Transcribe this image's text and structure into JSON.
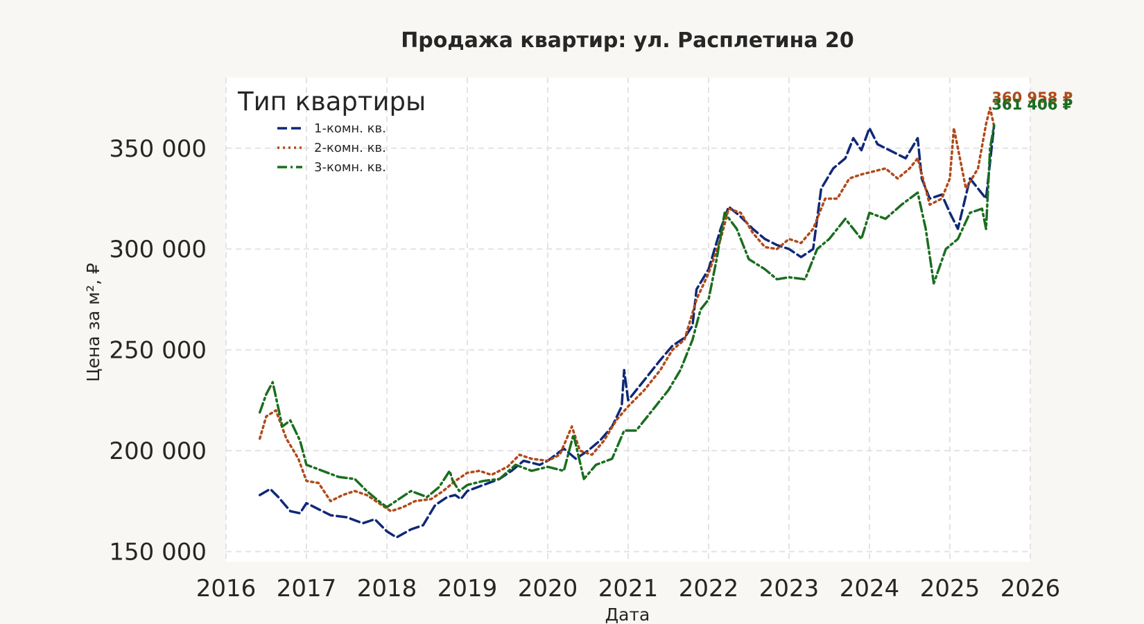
{
  "chart_data": {
    "type": "line",
    "title": "Продажа квартир: ул. Расплетина 20",
    "xlabel": "Дата",
    "ylabel": "Цена за м², ₽",
    "xlim": [
      2016.0,
      2026.0
    ],
    "ylim": [
      145000,
      385000
    ],
    "x_ticks": [
      "2016",
      "2017",
      "2018",
      "2019",
      "2020",
      "2021",
      "2022",
      "2023",
      "2024",
      "2025",
      "2026"
    ],
    "y_ticks": [
      {
        "value": 150000,
        "label": "150 000"
      },
      {
        "value": 200000,
        "label": "200 000"
      },
      {
        "value": 250000,
        "label": "250 000"
      },
      {
        "value": 300000,
        "label": "300 000"
      },
      {
        "value": 350000,
        "label": "350 000"
      }
    ],
    "grid": true,
    "legend": {
      "title": "Тип квартиры",
      "position": "top-left"
    },
    "series": [
      {
        "name": "1-комн. кв.",
        "color": "#0f2877",
        "dash": "dashed",
        "end_label": "361 406 ₽",
        "points": [
          [
            2016.42,
            178000
          ],
          [
            2016.55,
            181000
          ],
          [
            2016.65,
            177000
          ],
          [
            2016.8,
            170000
          ],
          [
            2016.92,
            169000
          ],
          [
            2017.0,
            174000
          ],
          [
            2017.15,
            171000
          ],
          [
            2017.3,
            168000
          ],
          [
            2017.5,
            167000
          ],
          [
            2017.7,
            164000
          ],
          [
            2017.85,
            166000
          ],
          [
            2018.0,
            160000
          ],
          [
            2018.12,
            157000
          ],
          [
            2018.3,
            161000
          ],
          [
            2018.45,
            163000
          ],
          [
            2018.6,
            173000
          ],
          [
            2018.75,
            177000
          ],
          [
            2018.85,
            178000
          ],
          [
            2018.92,
            176000
          ],
          [
            2019.0,
            180000
          ],
          [
            2019.2,
            183000
          ],
          [
            2019.4,
            186000
          ],
          [
            2019.55,
            190000
          ],
          [
            2019.7,
            195000
          ],
          [
            2019.9,
            193000
          ],
          [
            2020.0,
            195000
          ],
          [
            2020.2,
            201000
          ],
          [
            2020.35,
            196000
          ],
          [
            2020.5,
            200000
          ],
          [
            2020.65,
            205000
          ],
          [
            2020.8,
            212000
          ],
          [
            2020.92,
            222000
          ],
          [
            2020.95,
            240000
          ],
          [
            2021.0,
            225000
          ],
          [
            2021.2,
            235000
          ],
          [
            2021.4,
            245000
          ],
          [
            2021.55,
            252000
          ],
          [
            2021.7,
            256000
          ],
          [
            2021.8,
            262000
          ],
          [
            2021.85,
            280000
          ],
          [
            2022.0,
            290000
          ],
          [
            2022.15,
            310000
          ],
          [
            2022.25,
            321000
          ],
          [
            2022.4,
            316000
          ],
          [
            2022.55,
            310000
          ],
          [
            2022.7,
            305000
          ],
          [
            2022.85,
            302000
          ],
          [
            2023.0,
            300000
          ],
          [
            2023.15,
            296000
          ],
          [
            2023.3,
            300000
          ],
          [
            2023.4,
            330000
          ],
          [
            2023.55,
            340000
          ],
          [
            2023.7,
            345000
          ],
          [
            2023.8,
            355000
          ],
          [
            2023.9,
            349000
          ],
          [
            2024.0,
            360000
          ],
          [
            2024.1,
            352000
          ],
          [
            2024.3,
            348000
          ],
          [
            2024.45,
            345000
          ],
          [
            2024.6,
            355000
          ],
          [
            2024.65,
            335000
          ],
          [
            2024.75,
            325000
          ],
          [
            2024.9,
            327000
          ],
          [
            2025.0,
            318000
          ],
          [
            2025.1,
            310000
          ],
          [
            2025.25,
            335000
          ],
          [
            2025.35,
            330000
          ],
          [
            2025.45,
            325000
          ],
          [
            2025.55,
            361406
          ]
        ]
      },
      {
        "name": "2-комн. кв.",
        "color": "#b04a1a",
        "dash": "dotted",
        "end_label": "360 958 ₽",
        "points": [
          [
            2016.42,
            206000
          ],
          [
            2016.5,
            217000
          ],
          [
            2016.62,
            220000
          ],
          [
            2016.75,
            206000
          ],
          [
            2016.9,
            196000
          ],
          [
            2017.0,
            185000
          ],
          [
            2017.15,
            184000
          ],
          [
            2017.3,
            175000
          ],
          [
            2017.45,
            178000
          ],
          [
            2017.6,
            180000
          ],
          [
            2017.75,
            178000
          ],
          [
            2017.9,
            174000
          ],
          [
            2018.05,
            170000
          ],
          [
            2018.2,
            172000
          ],
          [
            2018.35,
            175000
          ],
          [
            2018.55,
            176000
          ],
          [
            2018.7,
            180000
          ],
          [
            2018.85,
            185000
          ],
          [
            2019.0,
            189000
          ],
          [
            2019.15,
            190000
          ],
          [
            2019.3,
            188000
          ],
          [
            2019.5,
            192000
          ],
          [
            2019.65,
            198000
          ],
          [
            2019.8,
            196000
          ],
          [
            2020.0,
            195000
          ],
          [
            2020.15,
            198000
          ],
          [
            2020.3,
            212000
          ],
          [
            2020.4,
            200000
          ],
          [
            2020.55,
            198000
          ],
          [
            2020.7,
            205000
          ],
          [
            2020.85,
            215000
          ],
          [
            2021.0,
            222000
          ],
          [
            2021.2,
            230000
          ],
          [
            2021.4,
            240000
          ],
          [
            2021.55,
            250000
          ],
          [
            2021.7,
            255000
          ],
          [
            2021.85,
            275000
          ],
          [
            2022.0,
            288000
          ],
          [
            2022.15,
            305000
          ],
          [
            2022.25,
            320000
          ],
          [
            2022.4,
            318000
          ],
          [
            2022.55,
            308000
          ],
          [
            2022.7,
            301000
          ],
          [
            2022.85,
            300000
          ],
          [
            2023.0,
            305000
          ],
          [
            2023.15,
            303000
          ],
          [
            2023.3,
            310000
          ],
          [
            2023.45,
            325000
          ],
          [
            2023.6,
            325000
          ],
          [
            2023.75,
            335000
          ],
          [
            2023.9,
            337000
          ],
          [
            2024.0,
            338000
          ],
          [
            2024.2,
            340000
          ],
          [
            2024.35,
            335000
          ],
          [
            2024.5,
            340000
          ],
          [
            2024.6,
            345000
          ],
          [
            2024.75,
            322000
          ],
          [
            2024.9,
            325000
          ],
          [
            2025.0,
            335000
          ],
          [
            2025.05,
            360000
          ],
          [
            2025.2,
            330000
          ],
          [
            2025.35,
            340000
          ],
          [
            2025.45,
            362000
          ],
          [
            2025.5,
            370000
          ],
          [
            2025.55,
            360958
          ]
        ]
      },
      {
        "name": "3-комн. кв.",
        "color": "#1a6e1f",
        "dash": "dashdot",
        "end_label": "361 406 ₽",
        "points": [
          [
            2016.42,
            219000
          ],
          [
            2016.5,
            228000
          ],
          [
            2016.58,
            234000
          ],
          [
            2016.7,
            212000
          ],
          [
            2016.8,
            215000
          ],
          [
            2016.92,
            205000
          ],
          [
            2017.0,
            193000
          ],
          [
            2017.2,
            190000
          ],
          [
            2017.4,
            187000
          ],
          [
            2017.6,
            186000
          ],
          [
            2017.75,
            180000
          ],
          [
            2017.9,
            175000
          ],
          [
            2018.0,
            172000
          ],
          [
            2018.15,
            176000
          ],
          [
            2018.3,
            180000
          ],
          [
            2018.5,
            177000
          ],
          [
            2018.65,
            182000
          ],
          [
            2018.78,
            190000
          ],
          [
            2018.82,
            185000
          ],
          [
            2018.9,
            180000
          ],
          [
            2019.0,
            183000
          ],
          [
            2019.2,
            185000
          ],
          [
            2019.4,
            186000
          ],
          [
            2019.6,
            193000
          ],
          [
            2019.8,
            190000
          ],
          [
            2020.0,
            192000
          ],
          [
            2020.2,
            190000
          ],
          [
            2020.32,
            208000
          ],
          [
            2020.45,
            186000
          ],
          [
            2020.6,
            193000
          ],
          [
            2020.8,
            196000
          ],
          [
            2020.95,
            210000
          ],
          [
            2021.1,
            210000
          ],
          [
            2021.3,
            220000
          ],
          [
            2021.5,
            230000
          ],
          [
            2021.65,
            240000
          ],
          [
            2021.8,
            255000
          ],
          [
            2021.9,
            270000
          ],
          [
            2022.0,
            275000
          ],
          [
            2022.1,
            295000
          ],
          [
            2022.2,
            318000
          ],
          [
            2022.35,
            310000
          ],
          [
            2022.5,
            295000
          ],
          [
            2022.7,
            290000
          ],
          [
            2022.85,
            285000
          ],
          [
            2023.0,
            286000
          ],
          [
            2023.2,
            285000
          ],
          [
            2023.35,
            300000
          ],
          [
            2023.5,
            305000
          ],
          [
            2023.7,
            315000
          ],
          [
            2023.9,
            305000
          ],
          [
            2024.0,
            318000
          ],
          [
            2024.2,
            315000
          ],
          [
            2024.4,
            322000
          ],
          [
            2024.6,
            328000
          ],
          [
            2024.7,
            310000
          ],
          [
            2024.8,
            283000
          ],
          [
            2024.95,
            300000
          ],
          [
            2025.1,
            305000
          ],
          [
            2025.25,
            318000
          ],
          [
            2025.4,
            320000
          ],
          [
            2025.45,
            310000
          ],
          [
            2025.5,
            350000
          ],
          [
            2025.55,
            361406
          ]
        ]
      }
    ]
  }
}
